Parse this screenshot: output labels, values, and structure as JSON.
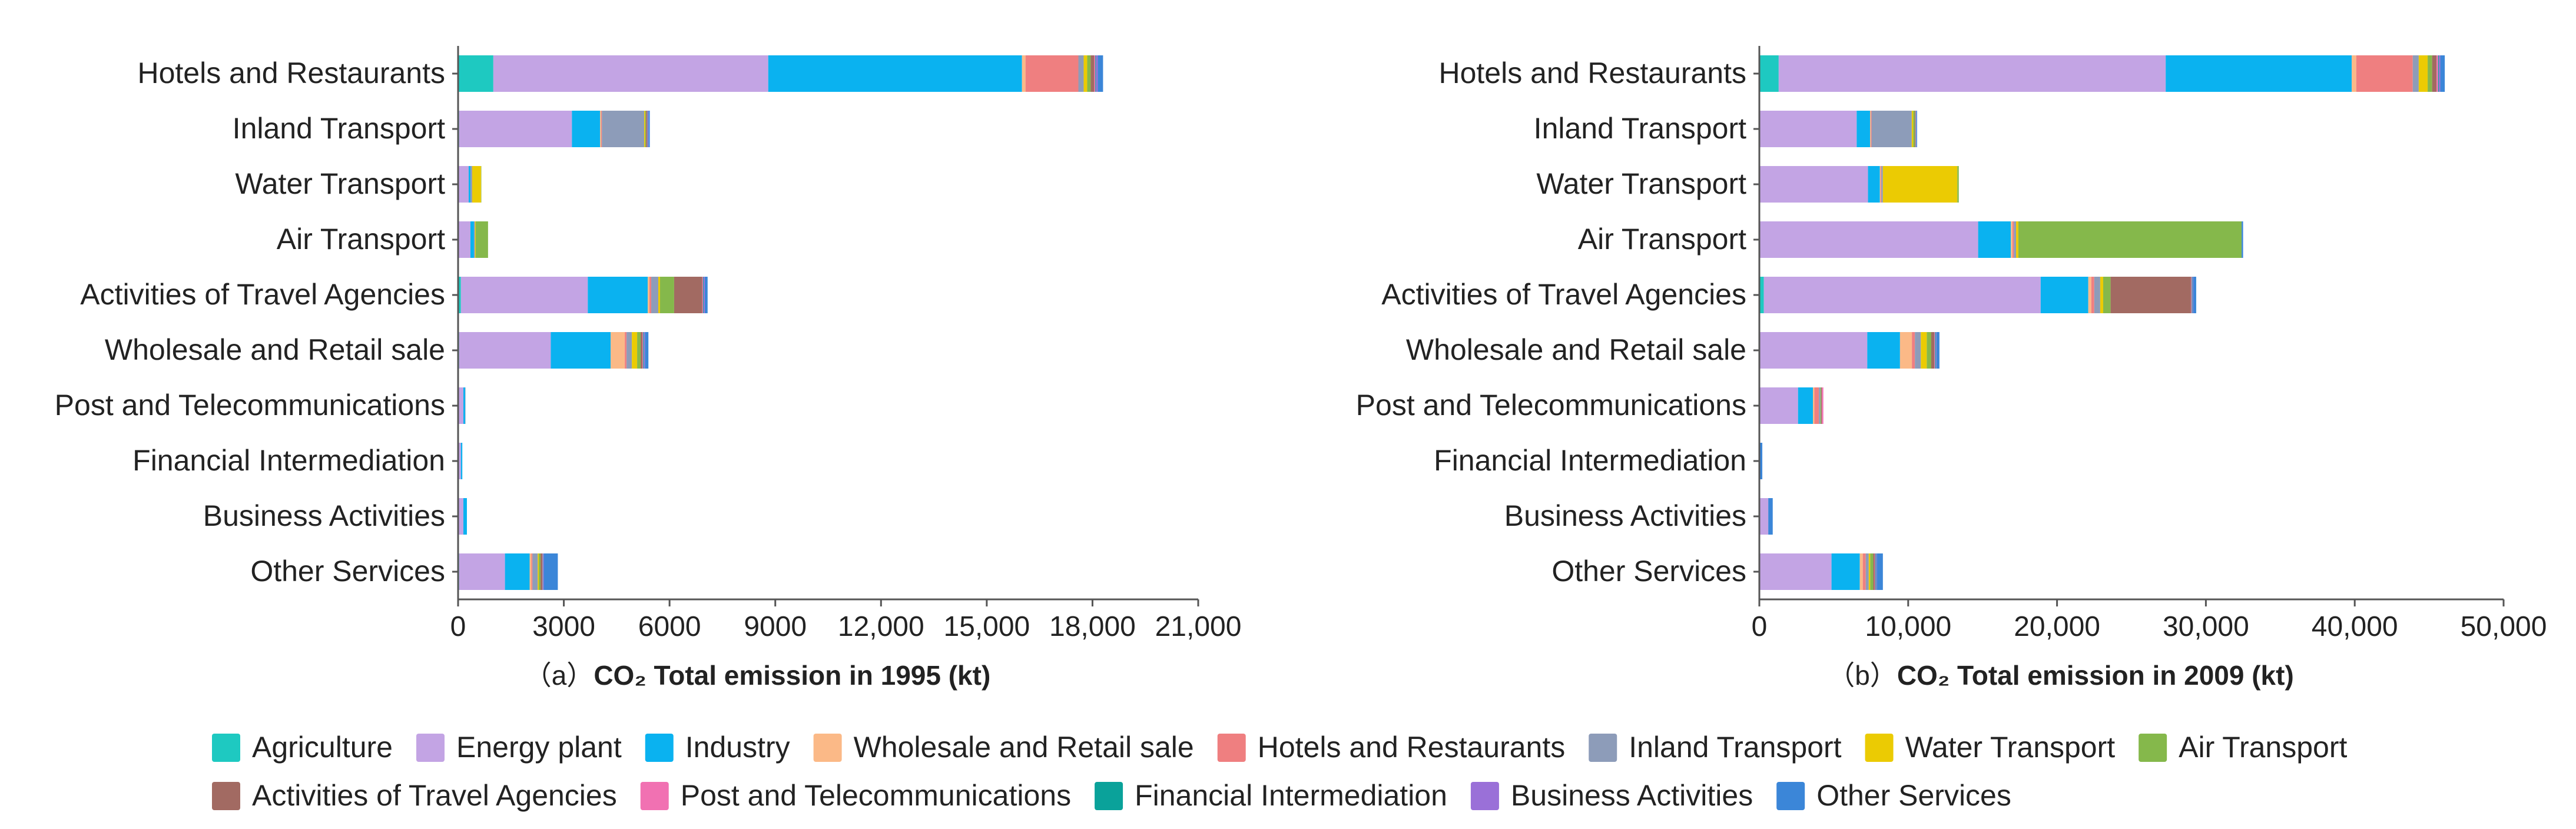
{
  "colors": {
    "Agriculture": "#1ec9c1",
    "Energy plant": "#c3a4e4",
    "Industry": "#0ab2f0",
    "Wholesale and Retail sale": "#fbb987",
    "Hotels and Restaurants": "#ef7f80",
    "Inland Transport": "#8d9cb9",
    "Water Transport": "#ebcb03",
    "Air Transport": "#85b84b",
    "Activities of Travel Agencies": "#a26a62",
    "Post and Telecommunications": "#f171b2",
    "Financial Intermediation": "#0aa29a",
    "Business Activities": "#9a70d8",
    "Other Services": "#3b86d8"
  },
  "legend": {
    "row1": [
      "Agriculture",
      "Energy plant",
      "Industry",
      "Wholesale and Retail sale",
      "Hotels and Restaurants",
      "Inland Transport",
      "Water Transport",
      "Air Transport"
    ],
    "row2": [
      "Activities of Travel Agencies",
      "Post and Telecommunications",
      "Financial Intermediation",
      "Business Activities",
      "Other Services"
    ]
  },
  "chart_data": [
    {
      "type": "bar",
      "orientation": "horizontal",
      "stacked": true,
      "caption_prefix": "（a）",
      "title": "CO₂ Total emission in 1995 (kt)",
      "categories": [
        "Hotels and Restaurants",
        "Inland Transport",
        "Water Transport",
        "Air Transport",
        "Activities of Travel Agencies",
        "Wholesale and Retail sale",
        "Post and Telecommunications",
        "Financial Intermediation",
        "Business Activities",
        "Other Services"
      ],
      "xlim": [
        0,
        21000
      ],
      "xticks": [
        0,
        3000,
        6000,
        9000,
        12000,
        15000,
        18000,
        21000
      ],
      "xtick_labels": [
        "0",
        "3000",
        "6000",
        "9000",
        "12,000",
        "15,000",
        "18,000",
        "21,000"
      ],
      "series": [
        {
          "name": "Agriculture",
          "values": [
            1000,
            30,
            0,
            0,
            80,
            30,
            0,
            0,
            0,
            30
          ]
        },
        {
          "name": "Energy plant",
          "values": [
            7800,
            3200,
            300,
            350,
            3600,
            2600,
            150,
            80,
            150,
            1300
          ]
        },
        {
          "name": "Industry",
          "values": [
            7200,
            800,
            50,
            100,
            1700,
            1700,
            50,
            40,
            100,
            700
          ]
        },
        {
          "name": "Wholesale and Retail sale",
          "values": [
            100,
            30,
            0,
            0,
            50,
            400,
            0,
            0,
            0,
            50
          ]
        },
        {
          "name": "Hotels and Restaurants",
          "values": [
            1500,
            20,
            0,
            0,
            50,
            50,
            0,
            0,
            0,
            30
          ]
        },
        {
          "name": "Inland Transport",
          "values": [
            150,
            1200,
            50,
            30,
            200,
            150,
            10,
            0,
            0,
            150
          ]
        },
        {
          "name": "Water Transport",
          "values": [
            100,
            30,
            250,
            20,
            50,
            150,
            0,
            0,
            0,
            30
          ]
        },
        {
          "name": "Air Transport",
          "values": [
            100,
            20,
            10,
            350,
            400,
            100,
            0,
            0,
            0,
            50
          ]
        },
        {
          "name": "Activities of Travel Agencies",
          "values": [
            100,
            30,
            0,
            0,
            800,
            50,
            0,
            0,
            0,
            50
          ]
        },
        {
          "name": "Post and Telecommunications",
          "values": [
            30,
            10,
            0,
            0,
            20,
            20,
            0,
            0,
            0,
            10
          ]
        },
        {
          "name": "Financial Intermediation",
          "values": [
            20,
            10,
            0,
            0,
            20,
            20,
            0,
            0,
            0,
            10
          ]
        },
        {
          "name": "Business Activities",
          "values": [
            50,
            20,
            0,
            0,
            30,
            30,
            0,
            0,
            0,
            20
          ]
        },
        {
          "name": "Other Services",
          "values": [
            150,
            40,
            0,
            0,
            80,
            100,
            0,
            0,
            0,
            400
          ]
        }
      ]
    },
    {
      "type": "bar",
      "orientation": "horizontal",
      "stacked": true,
      "caption_prefix": "（b）",
      "title": "CO₂ Total emission in 2009 (kt)",
      "categories": [
        "Hotels and Restaurants",
        "Inland Transport",
        "Water Transport",
        "Air Transport",
        "Activities of Travel Agencies",
        "Wholesale and Retail sale",
        "Post and Telecommunications",
        "Financial Intermediation",
        "Business Activities",
        "Other Services"
      ],
      "xlim": [
        0,
        50000
      ],
      "xticks": [
        0,
        10000,
        20000,
        30000,
        40000,
        50000
      ],
      "xtick_labels": [
        "0",
        "10,000",
        "20,000",
        "30,000",
        "40,000",
        "50,000"
      ],
      "series": [
        {
          "name": "Agriculture",
          "values": [
            1300,
            40,
            0,
            0,
            300,
            50,
            0,
            0,
            0,
            50
          ]
        },
        {
          "name": "Energy plant",
          "values": [
            26000,
            6500,
            7300,
            14700,
            18600,
            7200,
            2600,
            0,
            600,
            4800
          ]
        },
        {
          "name": "Industry",
          "values": [
            12500,
            900,
            800,
            2200,
            3200,
            2200,
            1000,
            0,
            0,
            1900
          ]
        },
        {
          "name": "Wholesale and Retail sale",
          "values": [
            300,
            50,
            50,
            100,
            200,
            800,
            100,
            0,
            0,
            200
          ]
        },
        {
          "name": "Hotels and Restaurants",
          "values": [
            3800,
            50,
            50,
            100,
            200,
            200,
            300,
            0,
            0,
            200
          ]
        },
        {
          "name": "Inland Transport",
          "values": [
            400,
            2700,
            100,
            150,
            400,
            400,
            100,
            0,
            0,
            200
          ]
        },
        {
          "name": "Water Transport",
          "values": [
            600,
            100,
            5000,
            150,
            200,
            400,
            0,
            0,
            0,
            100
          ]
        },
        {
          "name": "Air Transport",
          "values": [
            300,
            100,
            100,
            15000,
            500,
            300,
            50,
            0,
            0,
            200
          ]
        },
        {
          "name": "Activities of Travel Agencies",
          "values": [
            300,
            50,
            0,
            0,
            5400,
            200,
            50,
            0,
            0,
            100
          ]
        },
        {
          "name": "Post and Telecommunications",
          "values": [
            100,
            20,
            0,
            0,
            50,
            50,
            100,
            0,
            0,
            50
          ]
        },
        {
          "name": "Financial Intermediation",
          "values": [
            50,
            20,
            0,
            0,
            50,
            50,
            0,
            0,
            0,
            50
          ]
        },
        {
          "name": "Business Activities",
          "values": [
            100,
            20,
            0,
            0,
            50,
            50,
            0,
            0,
            0,
            50
          ]
        },
        {
          "name": "Other Services",
          "values": [
            300,
            50,
            0,
            100,
            200,
            200,
            0,
            200,
            300,
            400
          ]
        }
      ]
    }
  ]
}
